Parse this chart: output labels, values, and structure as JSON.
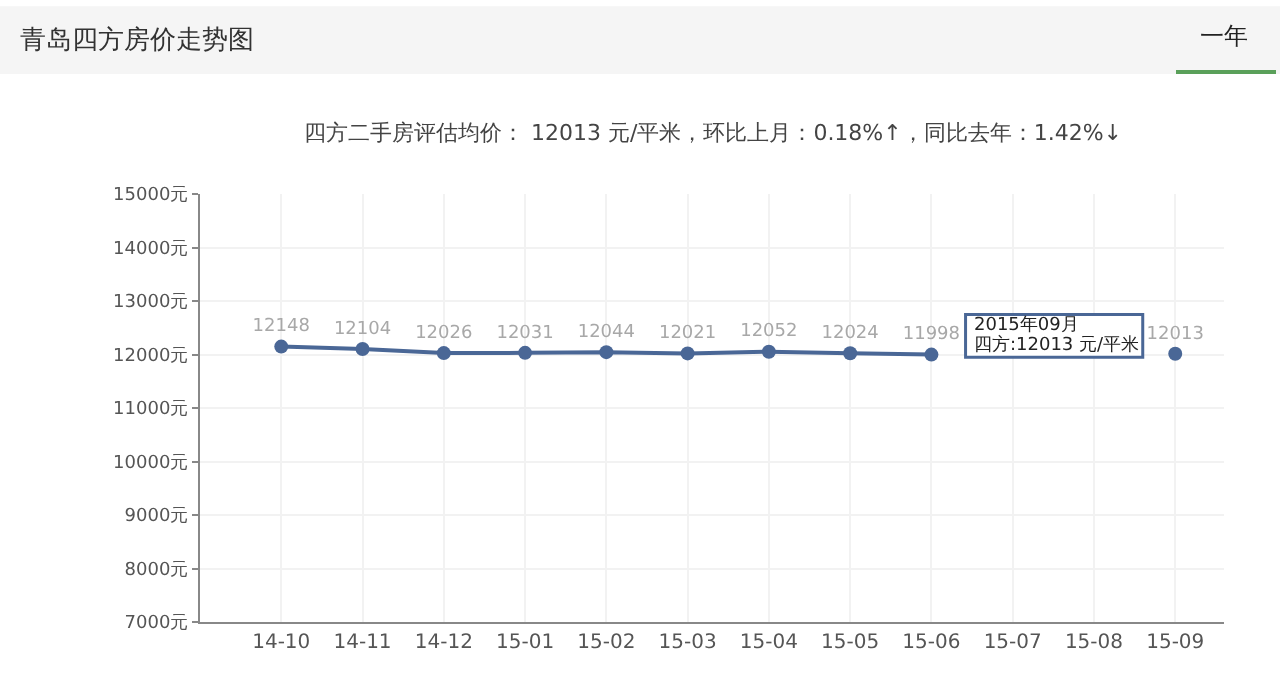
{
  "chart_data": {
    "type": "line",
    "title": "青岛四方房价走势图",
    "subtitle": "四方二手房评估均价： 12013 元/平米，环比上月：0.18%↑，同比去年：1.42%↓",
    "categories": [
      "14-10",
      "14-11",
      "14-12",
      "15-01",
      "15-02",
      "15-03",
      "15-04",
      "15-05",
      "15-06",
      "15-07",
      "15-08",
      "15-09"
    ],
    "series": [
      {
        "color": "#4a6796",
        "values": [
          12148,
          12104,
          12026,
          12031,
          12044,
          12021,
          12052,
          12024,
          11998,
          null,
          null,
          12013
        ],
        "value_labels": [
          "12148",
          "12104",
          "12026",
          "12031",
          "12044",
          "12021",
          "12052",
          "12024",
          "11998",
          null,
          null,
          "12013"
        ]
      }
    ],
    "ylim": [
      7000,
      15000
    ],
    "yticks": [
      {
        "value": 7000,
        "label": "7000元"
      },
      {
        "value": 8000,
        "label": "8000元"
      },
      {
        "value": 9000,
        "label": "9000元"
      },
      {
        "value": 10000,
        "label": "10000元"
      },
      {
        "value": 11000,
        "label": "11000元"
      },
      {
        "value": 12000,
        "label": "12000元"
      },
      {
        "value": 13000,
        "label": "13000元"
      },
      {
        "value": 14000,
        "label": "14000元"
      },
      {
        "value": 15000,
        "label": "15000元"
      }
    ],
    "annotations": [
      "一年",
      "2015年09月",
      "四方:12013 元/平米"
    ],
    "grid": true,
    "marker": "circle",
    "line_style": "solid",
    "legend": false
  }
}
